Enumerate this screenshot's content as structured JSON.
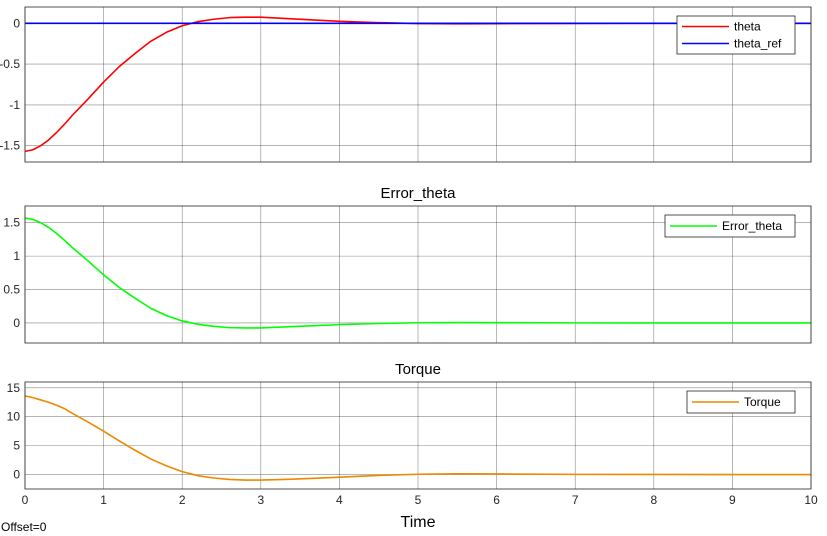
{
  "footer": {
    "offset_label": "Offset=0"
  },
  "chart_data": [
    {
      "type": "line",
      "title": "",
      "xlabel": "",
      "ylabel": "",
      "xlim": [
        0,
        10
      ],
      "ylim": [
        -1.7,
        0.2
      ],
      "xticks": [
        0,
        1,
        2,
        3,
        4,
        5,
        6,
        7,
        8,
        9,
        10
      ],
      "yticks": [
        -1.5,
        -1,
        -0.5,
        0
      ],
      "ytick_labels": [
        "-1.5",
        "-1",
        "-0.5",
        "0"
      ],
      "show_xtick_labels": false,
      "grid": true,
      "legend_position": "top-right",
      "series": [
        {
          "name": "theta",
          "color": "#ff0000",
          "x": [
            0,
            0.1,
            0.2,
            0.3,
            0.4,
            0.5,
            0.6,
            0.8,
            1.0,
            1.2,
            1.4,
            1.6,
            1.8,
            2.0,
            2.2,
            2.4,
            2.6,
            2.8,
            3.0,
            3.3,
            3.6,
            4.0,
            4.5,
            5.0,
            5.5,
            6.0,
            7.0,
            8.0,
            9.0,
            10.0
          ],
          "y": [
            -1.57,
            -1.55,
            -1.5,
            -1.43,
            -1.34,
            -1.24,
            -1.13,
            -0.93,
            -0.72,
            -0.53,
            -0.37,
            -0.22,
            -0.11,
            -0.03,
            0.02,
            0.05,
            0.07,
            0.075,
            0.075,
            0.06,
            0.045,
            0.025,
            0.008,
            -0.003,
            -0.006,
            -0.004,
            -0.001,
            0,
            0,
            0
          ]
        },
        {
          "name": "theta_ref",
          "color": "#0000ff",
          "x": [
            0,
            10
          ],
          "y": [
            0,
            0
          ]
        }
      ]
    },
    {
      "type": "line",
      "title": "Error_theta",
      "xlabel": "",
      "ylabel": "",
      "xlim": [
        0,
        10
      ],
      "ylim": [
        -0.3,
        1.75
      ],
      "xticks": [
        0,
        1,
        2,
        3,
        4,
        5,
        6,
        7,
        8,
        9,
        10
      ],
      "yticks": [
        0,
        0.5,
        1,
        1.5
      ],
      "ytick_labels": [
        "0",
        "0.5",
        "1",
        "1.5"
      ],
      "show_xtick_labels": false,
      "grid": true,
      "legend_position": "top-right",
      "series": [
        {
          "name": "Error_theta",
          "color": "#00ff00",
          "x": [
            0,
            0.1,
            0.2,
            0.3,
            0.4,
            0.5,
            0.6,
            0.8,
            1.0,
            1.2,
            1.4,
            1.6,
            1.8,
            2.0,
            2.2,
            2.4,
            2.6,
            2.8,
            3.0,
            3.3,
            3.6,
            4.0,
            4.5,
            5.0,
            5.5,
            6.0,
            7.0,
            8.0,
            9.0,
            10.0
          ],
          "y": [
            1.57,
            1.55,
            1.5,
            1.43,
            1.34,
            1.24,
            1.13,
            0.93,
            0.72,
            0.53,
            0.37,
            0.22,
            0.11,
            0.03,
            -0.02,
            -0.05,
            -0.07,
            -0.075,
            -0.075,
            -0.06,
            -0.045,
            -0.025,
            -0.008,
            0.003,
            0.006,
            0.004,
            0.001,
            0,
            0,
            0
          ]
        }
      ]
    },
    {
      "type": "line",
      "title": "Torque",
      "xlabel": "Time",
      "ylabel": "",
      "xlim": [
        0,
        10
      ],
      "ylim": [
        -2.5,
        16
      ],
      "xticks": [
        0,
        1,
        2,
        3,
        4,
        5,
        6,
        7,
        8,
        9,
        10
      ],
      "yticks": [
        0,
        5,
        10,
        15
      ],
      "ytick_labels": [
        "0",
        "5",
        "10",
        "15"
      ],
      "show_xtick_labels": true,
      "xtick_labels": [
        "0",
        "1",
        "2",
        "3",
        "4",
        "5",
        "6",
        "7",
        "8",
        "9",
        "10"
      ],
      "grid": true,
      "legend_position": "top-right",
      "series": [
        {
          "name": "Torque",
          "color": "#ee8800",
          "x": [
            0,
            0.1,
            0.2,
            0.3,
            0.4,
            0.5,
            0.6,
            0.8,
            1.0,
            1.2,
            1.4,
            1.6,
            1.8,
            2.0,
            2.2,
            2.4,
            2.6,
            2.8,
            3.0,
            3.3,
            3.6,
            4.0,
            4.5,
            5.0,
            5.5,
            6.0,
            7.0,
            8.0,
            9.0,
            10.0
          ],
          "y": [
            13.6,
            13.3,
            12.9,
            12.5,
            12.0,
            11.4,
            10.6,
            9.1,
            7.5,
            5.8,
            4.2,
            2.7,
            1.5,
            0.5,
            -0.2,
            -0.6,
            -0.85,
            -0.95,
            -0.95,
            -0.85,
            -0.7,
            -0.45,
            -0.15,
            0.05,
            0.12,
            0.1,
            0.03,
            0.01,
            0,
            0
          ]
        }
      ]
    }
  ]
}
